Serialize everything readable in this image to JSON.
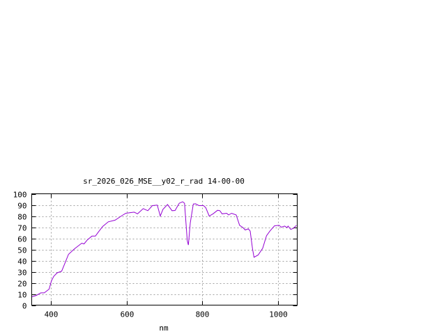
{
  "chart_data": {
    "type": "line",
    "title": "sr_2026_026_MSE__y02_r_rad 14-00-00",
    "xlabel": "nm",
    "ylabel": "",
    "xlim": [
      350,
      1050
    ],
    "ylim": [
      0,
      100
    ],
    "xticks": [
      400,
      600,
      800,
      1000
    ],
    "yticks": [
      0,
      10,
      20,
      30,
      40,
      50,
      60,
      70,
      80,
      90,
      100
    ],
    "grid": true,
    "line_color": "#9400d3",
    "series": [
      {
        "x": [
          350,
          362,
          374,
          383,
          396,
          402,
          408,
          417,
          429,
          438,
          447,
          463,
          482,
          488,
          497,
          509,
          518,
          525,
          537,
          552,
          570,
          586,
          598,
          620,
          629,
          644,
          656,
          668,
          681,
          689,
          696,
          708,
          720,
          728,
          739,
          748,
          753,
          760,
          763,
          768,
          776,
          782,
          791,
          803,
          809,
          818,
          828,
          840,
          846,
          852,
          864,
          869,
          877,
          889,
          898,
          907,
          913,
          921,
          926,
          932,
          936,
          947,
          959,
          969,
          978,
          990,
          1002,
          1008,
          1017,
          1023,
          1026,
          1033,
          1040,
          1048
        ],
        "y": [
          7.5,
          8.7,
          11,
          11,
          14.4,
          21.8,
          25.8,
          29,
          30.5,
          38,
          45.6,
          50.6,
          55.6,
          55,
          58.7,
          62,
          62,
          65.4,
          70.6,
          74.8,
          76.3,
          80,
          82.5,
          83.5,
          82,
          86.7,
          84.8,
          89.4,
          89.8,
          80,
          86,
          90.4,
          84.8,
          85,
          91.5,
          92.9,
          91.5,
          58,
          54,
          73.7,
          90.8,
          91,
          89.4,
          89.4,
          87.5,
          80,
          82,
          85.2,
          84.8,
          82,
          82.5,
          81,
          82.5,
          81,
          71.7,
          69.6,
          67.5,
          68.5,
          66.5,
          50.8,
          43,
          45,
          51.2,
          62.3,
          66.5,
          71.2,
          71.7,
          70,
          71,
          69.6,
          71,
          68,
          69,
          71.7
        ]
      }
    ]
  }
}
